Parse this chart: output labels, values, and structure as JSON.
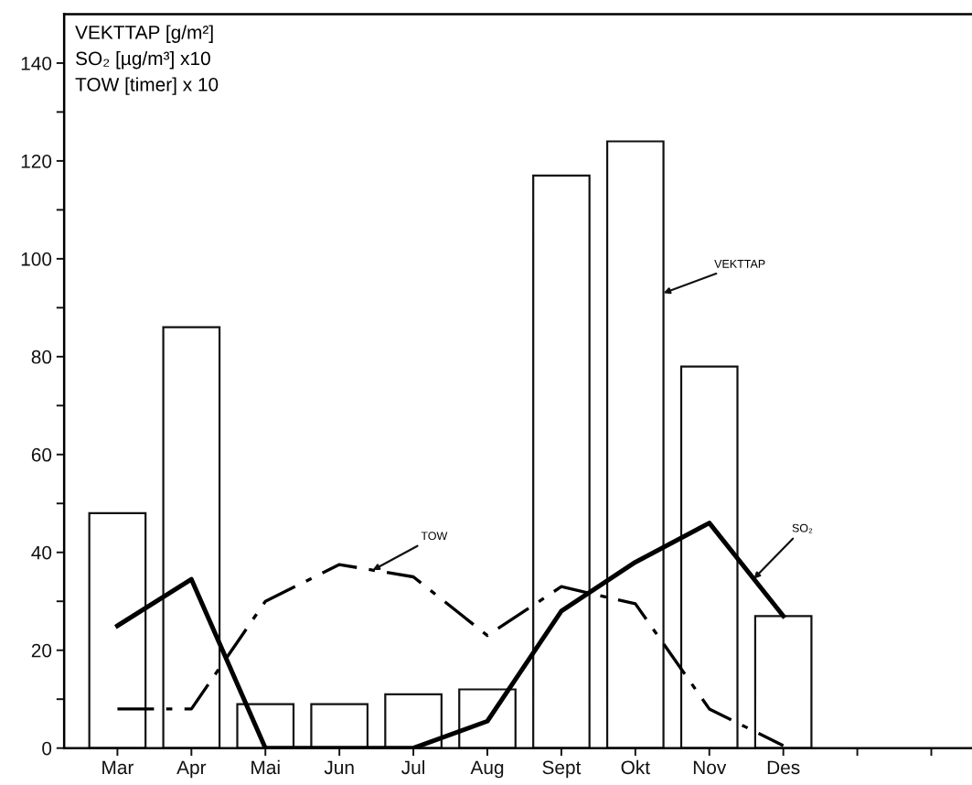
{
  "chart_data": {
    "type": "bar",
    "ylabel": "VEKTTAP [g/m²]\nSO₂ [µg/m³] x10\nTOW [timer] x 10",
    "categories": [
      "Mar",
      "Apr",
      "Mai",
      "Jun",
      "Jul",
      "Aug",
      "Sept",
      "Okt",
      "Nov",
      "Des",
      null,
      null
    ],
    "series": [
      {
        "name": "VEKTTAP",
        "color": "#ffffff",
        "values": [
          48,
          86,
          9,
          9,
          11,
          12,
          117,
          124,
          78,
          27,
          null,
          null
        ]
      },
      {
        "name": "SO₂",
        "type": "line",
        "color": "#000000",
        "line_style": "solid",
        "values": [
          25,
          34.5,
          0,
          0,
          0,
          5.5,
          28,
          38,
          46,
          27,
          null,
          null
        ]
      },
      {
        "name": "TOW",
        "type": "line",
        "color": "#000000",
        "line_style": "dashdot",
        "values": [
          8,
          8,
          30,
          37.5,
          35,
          23,
          33,
          29.5,
          8,
          0.5,
          null,
          null
        ]
      }
    ],
    "ylim": [
      0,
      150
    ],
    "yticks": [
      0,
      {
        "value": 10,
        "label": null
      },
      20,
      {
        "value": 30,
        "label": null
      },
      40,
      {
        "value": 50,
        "label": null
      },
      60,
      {
        "value": 70,
        "label": null
      },
      80,
      {
        "value": 90,
        "label": null
      },
      100,
      {
        "value": 110,
        "label": null
      },
      120,
      {
        "value": 130,
        "label": null
      },
      140
    ],
    "grid": false,
    "legend": false,
    "marker": "none"
  }
}
